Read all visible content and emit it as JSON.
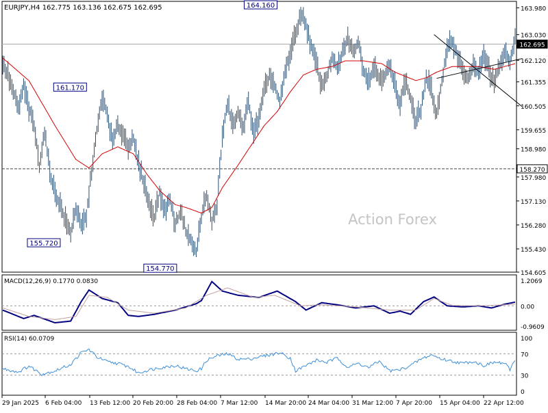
{
  "header": {
    "symbol": "EURJPY,H4",
    "open": "162.775",
    "high": "163.136",
    "low": "162.675",
    "close": "162.695"
  },
  "watermark": "Action Forex",
  "colors": {
    "price": "#2a4d6e",
    "ma": "#d40000",
    "macd": "#000080",
    "signal": "#c0a0a0",
    "rsi": "#3b8ed8",
    "level": "#444444",
    "label_box": "#000080",
    "current_price_bg": "#000000"
  },
  "chart_data": [
    {
      "type": "bar",
      "name": "EURJPY,H4",
      "ylim": [
        154.605,
        164.21
      ],
      "yticks": [
        "163.980",
        "163.030",
        "162.120",
        "161.355",
        "160.505",
        "159.655",
        "158.980",
        "157.980",
        "157.130",
        "156.280",
        "155.430",
        "154.605"
      ],
      "xlabels": [
        "29 Jan 2025",
        "6 Feb 04:00",
        "13 Feb 12:00",
        "20 Feb 20:00",
        "28 Feb 04:00",
        "7 Mar 12:00",
        "14 Mar 20:00",
        "24 Mar 04:00",
        "31 Mar 12:00",
        "7 Apr 20:00",
        "15 Apr 04:00",
        "22 Apr 12:00"
      ],
      "price_path": [
        [
          0,
          162.0
        ],
        [
          4,
          161.6
        ],
        [
          8,
          161.0
        ],
        [
          12,
          160.4
        ],
        [
          16,
          161.2
        ],
        [
          20,
          160.4
        ],
        [
          24,
          159.8
        ],
        [
          28,
          158.4
        ],
        [
          32,
          159.6
        ],
        [
          36,
          158.2
        ],
        [
          40,
          157.4
        ],
        [
          44,
          157.0
        ],
        [
          48,
          156.4
        ],
        [
          52,
          156.0
        ],
        [
          56,
          156.9
        ],
        [
          60,
          156.2
        ],
        [
          64,
          156.6
        ],
        [
          68,
          158.2
        ],
        [
          72,
          159.6
        ],
        [
          76,
          160.8
        ],
        [
          80,
          160.2
        ],
        [
          84,
          159.2
        ],
        [
          88,
          159.8
        ],
        [
          92,
          159.5
        ],
        [
          96,
          159.1
        ],
        [
          100,
          159.3
        ],
        [
          104,
          158.4
        ],
        [
          108,
          157.8
        ],
        [
          112,
          157.0
        ],
        [
          116,
          156.6
        ],
        [
          120,
          157.4
        ],
        [
          124,
          156.8
        ],
        [
          128,
          157.2
        ],
        [
          132,
          156.3
        ],
        [
          136,
          156.8
        ],
        [
          140,
          156.1
        ],
        [
          144,
          155.7
        ],
        [
          148,
          155.3
        ],
        [
          152,
          156.6
        ],
        [
          156,
          157.3
        ],
        [
          160,
          156.4
        ],
        [
          164,
          157.0
        ],
        [
          168,
          159.4
        ],
        [
          172,
          160.6
        ],
        [
          176,
          159.8
        ],
        [
          180,
          160.2
        ],
        [
          184,
          159.8
        ],
        [
          188,
          160.6
        ],
        [
          192,
          159.6
        ],
        [
          196,
          160.0
        ],
        [
          200,
          161.0
        ],
        [
          204,
          161.6
        ],
        [
          208,
          161.2
        ],
        [
          212,
          160.6
        ],
        [
          216,
          161.7
        ],
        [
          220,
          162.4
        ],
        [
          224,
          163.0
        ],
        [
          228,
          163.8
        ],
        [
          232,
          163.4
        ],
        [
          236,
          162.6
        ],
        [
          240,
          162.0
        ],
        [
          244,
          161.2
        ],
        [
          248,
          161.6
        ],
        [
          252,
          162.2
        ],
        [
          256,
          161.8
        ],
        [
          260,
          162.4
        ],
        [
          264,
          162.9
        ],
        [
          268,
          162.4
        ],
        [
          272,
          162.8
        ],
        [
          276,
          161.8
        ],
        [
          280,
          161.4
        ],
        [
          284,
          161.9
        ],
        [
          288,
          161.5
        ],
        [
          292,
          161.6
        ],
        [
          296,
          161.9
        ],
        [
          300,
          161.2
        ],
        [
          304,
          160.6
        ],
        [
          308,
          161.4
        ],
        [
          312,
          160.8
        ],
        [
          316,
          159.9
        ],
        [
          320,
          160.4
        ],
        [
          324,
          161.5
        ],
        [
          328,
          161.0
        ],
        [
          332,
          160.2
        ],
        [
          336,
          161.4
        ],
        [
          340,
          162.5
        ],
        [
          344,
          162.8
        ],
        [
          348,
          162.3
        ],
        [
          352,
          161.8
        ],
        [
          356,
          161.4
        ],
        [
          360,
          162.0
        ],
        [
          364,
          161.6
        ],
        [
          368,
          162.3
        ],
        [
          372,
          161.8
        ],
        [
          376,
          161.3
        ],
        [
          380,
          161.9
        ],
        [
          384,
          162.4
        ],
        [
          388,
          162.0
        ],
        [
          392,
          163.04
        ]
      ],
      "bars_count": 393,
      "ma_path": [
        [
          0,
          162.2
        ],
        [
          20,
          161.4
        ],
        [
          40,
          159.8
        ],
        [
          56,
          158.6
        ],
        [
          66,
          158.3
        ],
        [
          76,
          158.8
        ],
        [
          88,
          159.05
        ],
        [
          100,
          158.8
        ],
        [
          110,
          158.1
        ],
        [
          120,
          157.5
        ],
        [
          132,
          157.0
        ],
        [
          140,
          156.9
        ],
        [
          152,
          156.7
        ],
        [
          160,
          156.9
        ],
        [
          168,
          157.6
        ],
        [
          180,
          158.4
        ],
        [
          190,
          159.1
        ],
        [
          200,
          159.8
        ],
        [
          210,
          160.3
        ],
        [
          220,
          161.0
        ],
        [
          230,
          161.6
        ],
        [
          240,
          161.8
        ],
        [
          252,
          161.9
        ],
        [
          262,
          162.1
        ],
        [
          276,
          162.1
        ],
        [
          290,
          162.0
        ],
        [
          300,
          161.7
        ],
        [
          316,
          161.4
        ],
        [
          324,
          161.5
        ],
        [
          332,
          161.7
        ],
        [
          344,
          161.9
        ],
        [
          352,
          161.9
        ],
        [
          364,
          161.9
        ],
        [
          376,
          161.8
        ],
        [
          384,
          161.9
        ],
        [
          392,
          162.0
        ]
      ],
      "levels": [
        {
          "value": 162.695,
          "label": "162.695"
        },
        {
          "value": 158.27,
          "label": "158.270"
        }
      ],
      "annotations": [
        {
          "label": "164.160",
          "x": 212,
          "y": 164.16
        },
        {
          "label": "161.170",
          "x": 62,
          "y": 161.17
        },
        {
          "label": "155.720",
          "x": 44,
          "y": 155.72
        },
        {
          "label": "154.770",
          "x": 132,
          "y": 154.77
        }
      ],
      "channel": [
        {
          "x1": 330,
          "y1": 163.03,
          "x2": 392,
          "y2": 160.48
        },
        {
          "x1": 332,
          "y1": 161.48,
          "x2": 392,
          "y2": 162.18
        }
      ]
    },
    {
      "type": "line",
      "name": "MACD(12,26,9) 0.1770 0.0830",
      "ylim": [
        -0.9609,
        1.2069
      ],
      "ytick_labels": [
        "1.2069",
        "0.00",
        "-0.9609"
      ],
      "series": [
        {
          "name": "MACD",
          "values": [
            [
              0,
              -0.2
            ],
            [
              16,
              -0.6
            ],
            [
              24,
              -0.45
            ],
            [
              40,
              -0.8
            ],
            [
              52,
              -0.72
            ],
            [
              60,
              0.2
            ],
            [
              66,
              0.75
            ],
            [
              76,
              0.35
            ],
            [
              88,
              0.15
            ],
            [
              96,
              -0.45
            ],
            [
              104,
              -0.5
            ],
            [
              116,
              -0.4
            ],
            [
              132,
              -0.2
            ],
            [
              148,
              0.1
            ],
            [
              152,
              0.25
            ],
            [
              160,
              1.15
            ],
            [
              168,
              0.7
            ],
            [
              180,
              0.5
            ],
            [
              196,
              0.4
            ],
            [
              210,
              0.7
            ],
            [
              224,
              0.2
            ],
            [
              232,
              -0.2
            ],
            [
              244,
              0.15
            ],
            [
              256,
              0.05
            ],
            [
              270,
              -0.1
            ],
            [
              284,
              0.0
            ],
            [
              296,
              -0.35
            ],
            [
              304,
              -0.25
            ],
            [
              312,
              -0.4
            ],
            [
              322,
              0.2
            ],
            [
              330,
              0.42
            ],
            [
              340,
              0.0
            ],
            [
              352,
              -0.05
            ],
            [
              364,
              0.0
            ],
            [
              374,
              -0.1
            ],
            [
              384,
              0.08
            ],
            [
              392,
              0.177
            ]
          ]
        },
        {
          "name": "Signal",
          "values": [
            [
              0,
              -0.1
            ],
            [
              20,
              -0.5
            ],
            [
              40,
              -0.65
            ],
            [
              56,
              -0.5
            ],
            [
              66,
              0.5
            ],
            [
              80,
              0.4
            ],
            [
              96,
              -0.2
            ],
            [
              116,
              -0.35
            ],
            [
              140,
              -0.1
            ],
            [
              156,
              0.5
            ],
            [
              172,
              0.85
            ],
            [
              192,
              0.4
            ],
            [
              208,
              0.5
            ],
            [
              228,
              0.0
            ],
            [
              244,
              0.05
            ],
            [
              270,
              -0.05
            ],
            [
              296,
              -0.2
            ],
            [
              316,
              -0.2
            ],
            [
              330,
              0.35
            ],
            [
              344,
              0.02
            ],
            [
              364,
              0.0
            ],
            [
              384,
              0.05
            ],
            [
              392,
              0.083
            ]
          ]
        }
      ]
    },
    {
      "type": "line",
      "name": "RSI(14) 60.0709",
      "ylim": [
        0,
        100
      ],
      "ytick_labels": [
        "100",
        "70",
        "30",
        "0"
      ],
      "levels": [
        70,
        30
      ],
      "series": [
        {
          "name": "RSI",
          "values": [
            [
              0,
              42
            ],
            [
              12,
              36
            ],
            [
              20,
              47
            ],
            [
              30,
              32
            ],
            [
              40,
              38
            ],
            [
              52,
              50
            ],
            [
              60,
              72
            ],
            [
              66,
              78
            ],
            [
              72,
              64
            ],
            [
              80,
              55
            ],
            [
              88,
              52
            ],
            [
              96,
              46
            ],
            [
              104,
              34
            ],
            [
              112,
              40
            ],
            [
              120,
              44
            ],
            [
              132,
              48
            ],
            [
              140,
              42
            ],
            [
              148,
              38
            ],
            [
              152,
              42
            ],
            [
              156,
              58
            ],
            [
              164,
              66
            ],
            [
              172,
              70
            ],
            [
              180,
              60
            ],
            [
              188,
              60
            ],
            [
              196,
              64
            ],
            [
              204,
              68
            ],
            [
              212,
              72
            ],
            [
              220,
              62
            ],
            [
              224,
              38
            ],
            [
              232,
              48
            ],
            [
              240,
              58
            ],
            [
              248,
              54
            ],
            [
              256,
              62
            ],
            [
              264,
              45
            ],
            [
              272,
              52
            ],
            [
              280,
              44
            ],
            [
              288,
              56
            ],
            [
              296,
              38
            ],
            [
              304,
              40
            ],
            [
              312,
              48
            ],
            [
              320,
              60
            ],
            [
              328,
              68
            ],
            [
              336,
              60
            ],
            [
              344,
              56
            ],
            [
              352,
              52
            ],
            [
              360,
              56
            ],
            [
              368,
              48
            ],
            [
              376,
              54
            ],
            [
              384,
              52
            ],
            [
              388,
              40
            ],
            [
              392,
              60.07
            ]
          ]
        }
      ]
    }
  ]
}
